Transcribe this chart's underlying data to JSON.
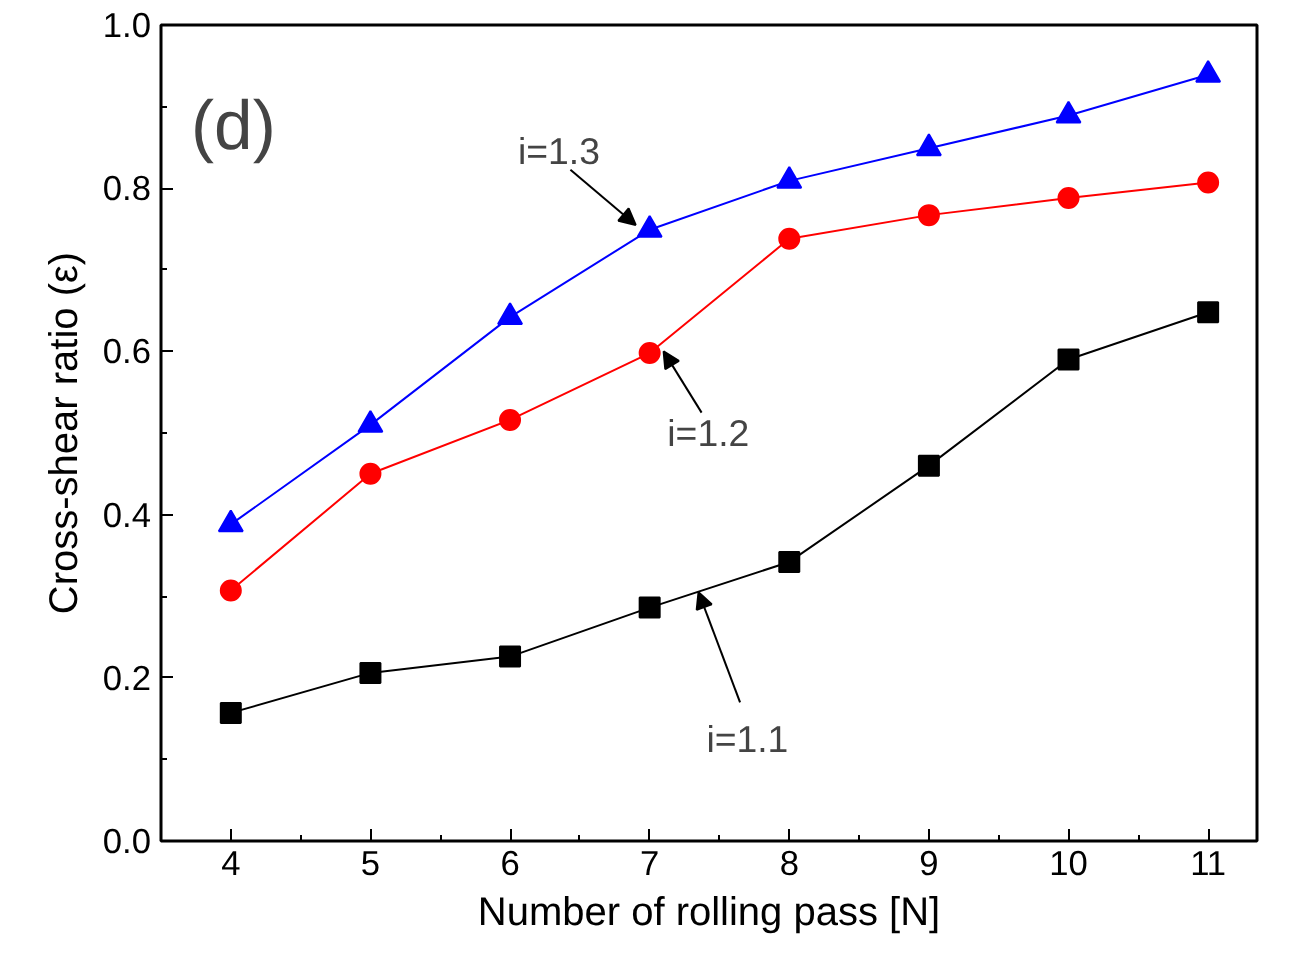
{
  "chart_data": {
    "type": "line",
    "xlabel": "Number of rolling pass [N]",
    "ylabel": "Cross-shear ratio (ε)",
    "x": [
      4,
      5,
      6,
      7,
      8,
      9,
      10,
      11
    ],
    "series": [
      {
        "color": "#000000",
        "marker": "square",
        "values": [
          0.157,
          0.206,
          0.226,
          0.286,
          0.342,
          0.46,
          0.59,
          0.648
        ]
      },
      {
        "color": "#ff0000",
        "marker": "circle",
        "values": [
          0.307,
          0.45,
          0.516,
          0.598,
          0.738,
          0.767,
          0.788,
          0.807
        ]
      },
      {
        "color": "#0000ff",
        "marker": "triangle",
        "values": [
          0.388,
          0.51,
          0.642,
          0.749,
          0.809,
          0.849,
          0.889,
          0.939
        ]
      }
    ],
    "xlim": [
      3.5,
      11.35
    ],
    "xticks": [
      4,
      5,
      6,
      7,
      8,
      9,
      10,
      11
    ],
    "ylim": [
      0,
      1.0
    ],
    "yticks": [
      {
        "value": 0,
        "label": "0.0"
      },
      {
        "value": 0.2,
        "label": "0.2"
      },
      {
        "value": 0.4,
        "label": "0.4"
      },
      {
        "value": 0.6,
        "label": "0.6"
      },
      {
        "value": 0.8,
        "label": "0.8"
      },
      {
        "value": 1.0,
        "label": "1.0"
      }
    ],
    "annotations": [
      "(d)",
      {
        "text": "i=1.1",
        "x": 7.35,
        "y": 0.305
      },
      {
        "text": "i=1.2",
        "x": 7.1,
        "y": 0.6
      },
      {
        "text": "i=1.3",
        "x": 6.9,
        "y": 0.755
      }
    ],
    "grid": false,
    "line_style": "solid"
  }
}
